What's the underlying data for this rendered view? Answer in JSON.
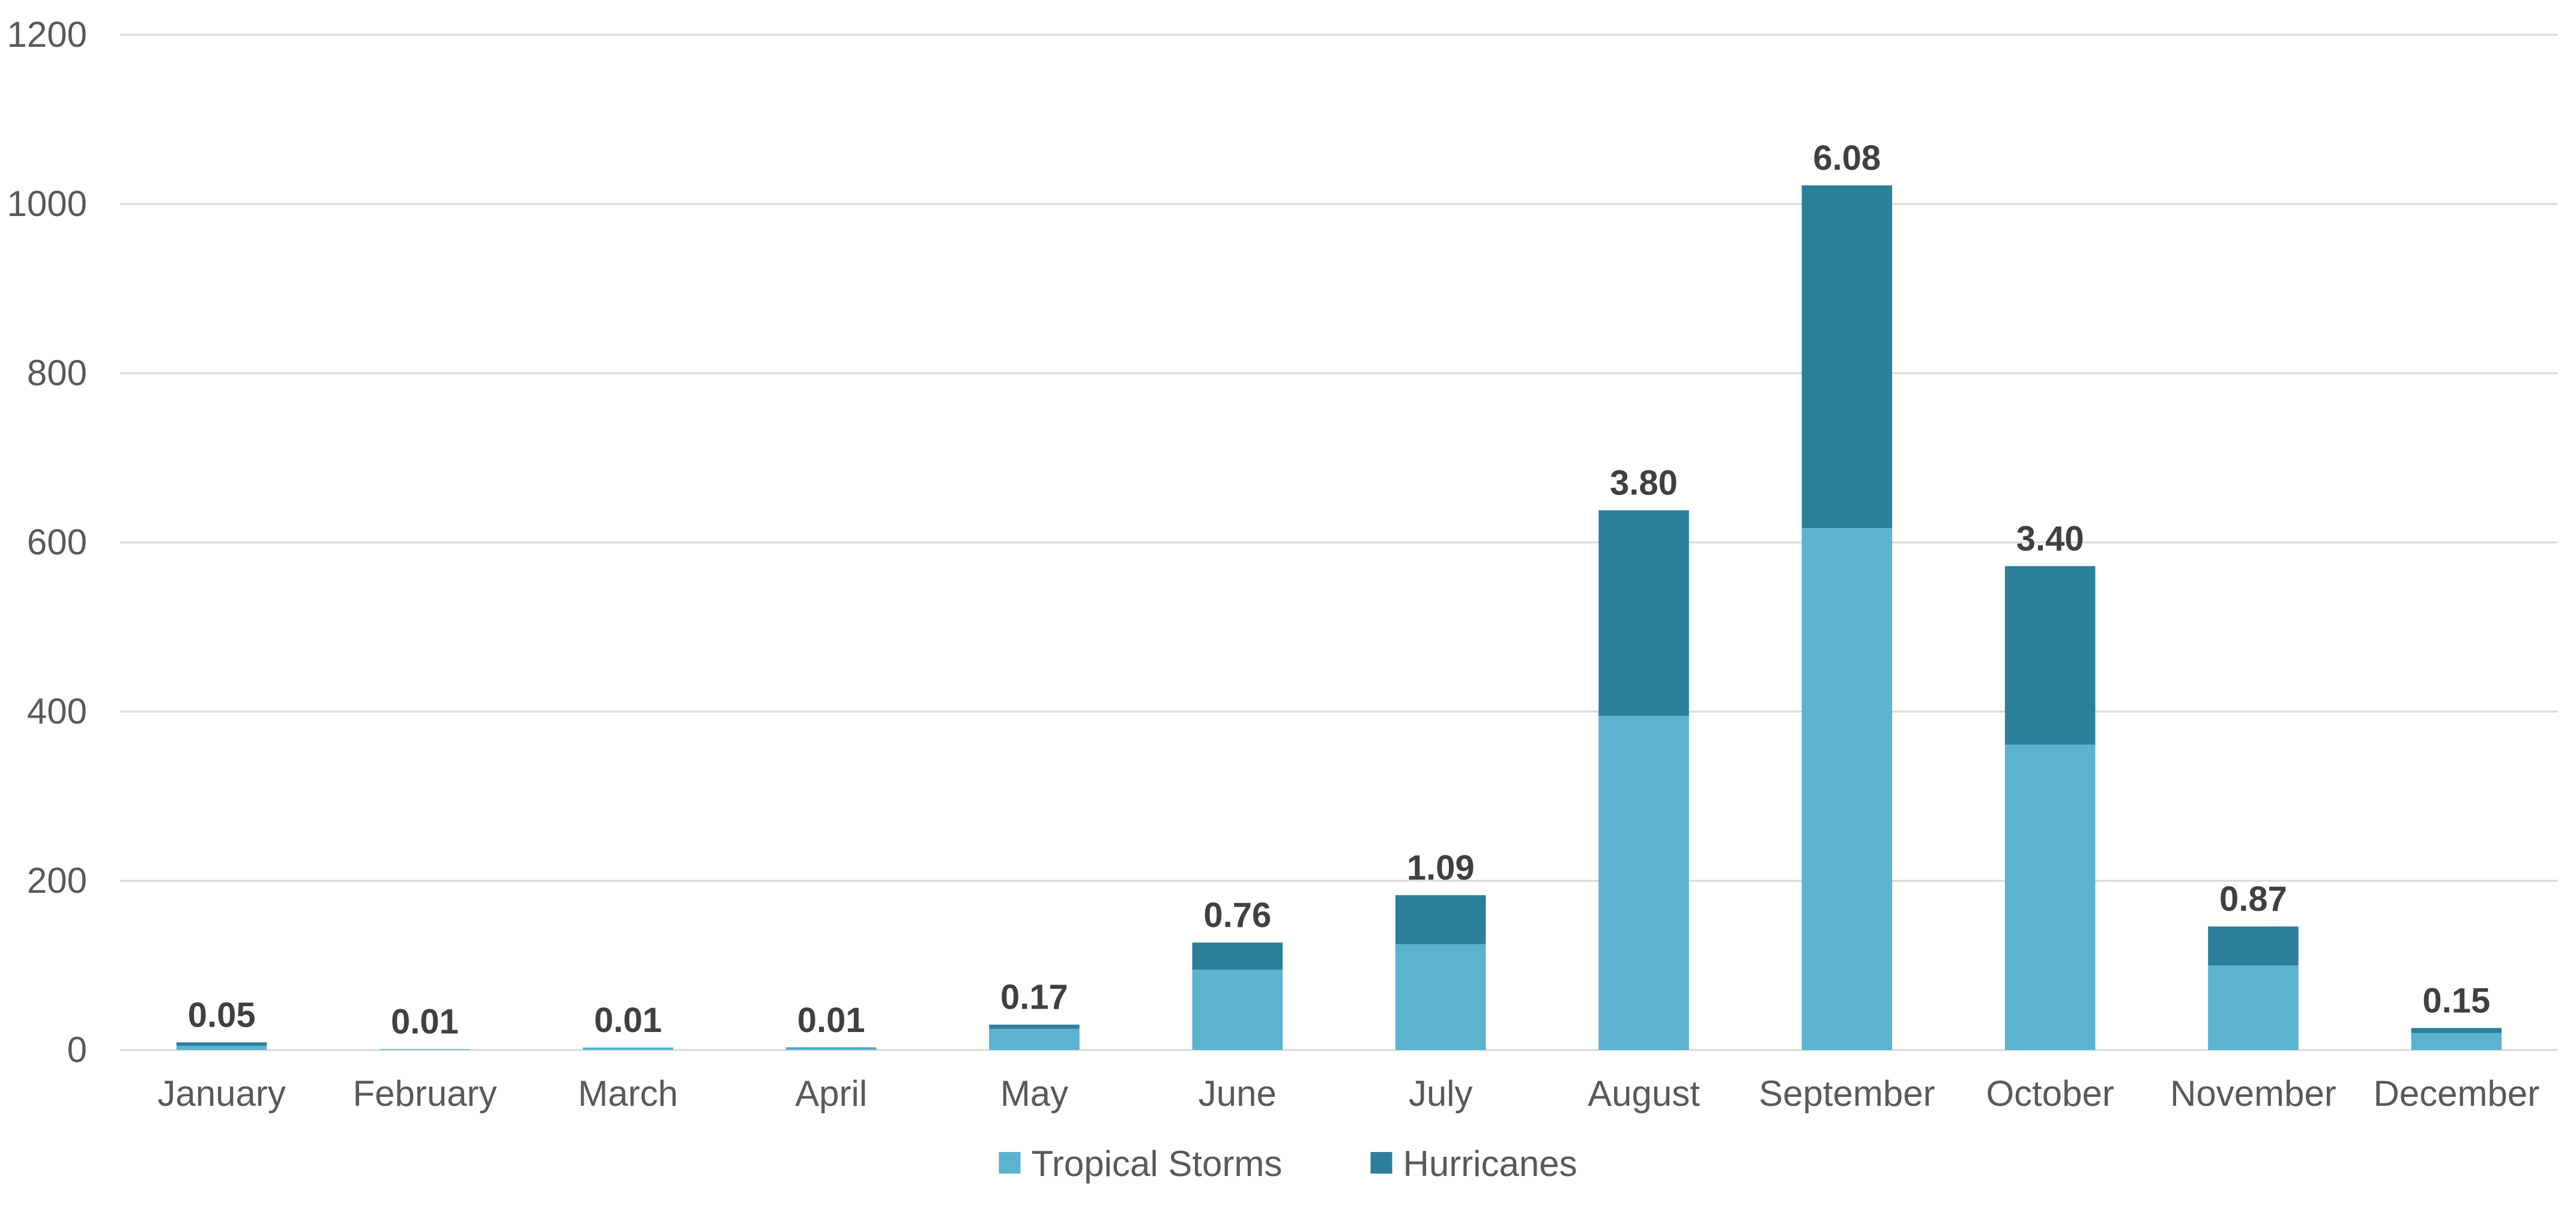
{
  "chart_data": {
    "type": "bar",
    "stacked": true,
    "title": "",
    "xlabel": "",
    "ylabel": "",
    "ylim": [
      0,
      1200
    ],
    "yticks": [
      0,
      200,
      400,
      600,
      800,
      1000,
      1200
    ],
    "grid": true,
    "legend_position": "bottom",
    "categories": [
      "January",
      "February",
      "March",
      "April",
      "May",
      "June",
      "July",
      "August",
      "September",
      "October",
      "November",
      "December"
    ],
    "series": [
      {
        "name": "Tropical Storms",
        "color": "#5bb3d0",
        "values": [
          5,
          1,
          3,
          2,
          25,
          95,
          125,
          395,
          617,
          361,
          100,
          20
        ]
      },
      {
        "name": "Hurricanes",
        "color": "#2c7f9b",
        "values": [
          4,
          0,
          0,
          1,
          5,
          32,
          58,
          243,
          405,
          211,
          46,
          6
        ]
      }
    ],
    "data_labels": [
      "0.05",
      "0.01",
      "0.01",
      "0.01",
      "0.17",
      "0.76",
      "1.09",
      "3.80",
      "6.08",
      "3.40",
      "0.87",
      "0.15"
    ]
  }
}
